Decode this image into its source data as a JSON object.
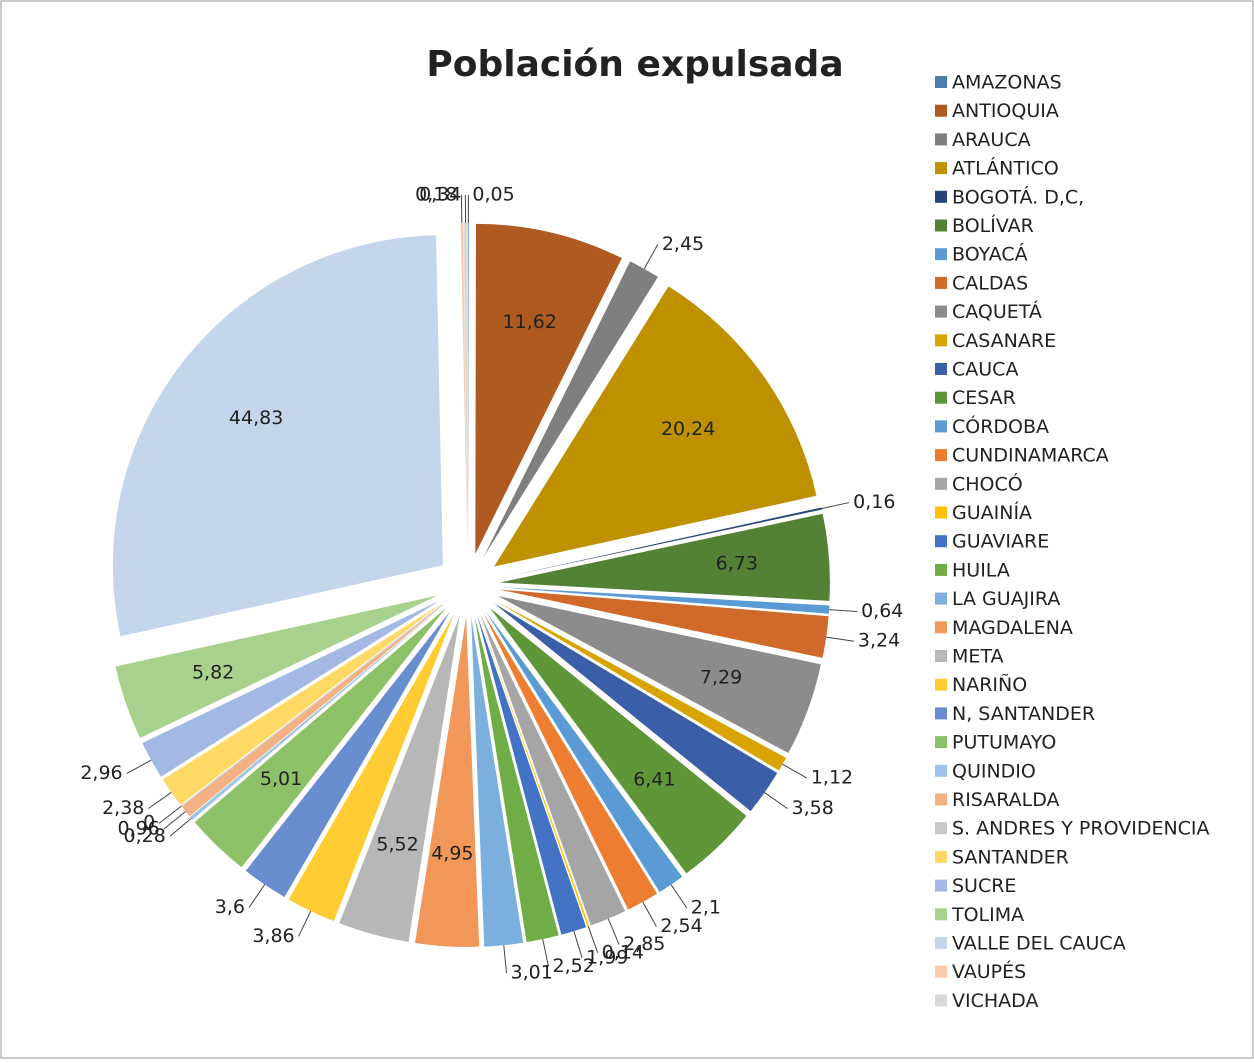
{
  "chart_data": {
    "type": "pie",
    "title": "Población expulsada",
    "categories": [
      "AMAZONAS",
      "ANTIOQUIA",
      "ARAUCA",
      "ATLÁNTICO",
      "BOGOTÁ. D,C,",
      "BOLÍVAR",
      "BOYACÁ",
      "CALDAS",
      "CAQUETÁ",
      "CASANARE",
      "CAUCA",
      "CESAR",
      "CÓRDOBA",
      "CUNDINAMARCA",
      "CHOCÓ",
      "GUAINÍA",
      "GUAVIARE",
      "HUILA",
      "LA GUAJIRA",
      "MAGDALENA",
      "META",
      "NARIÑO",
      "N, SANTANDER",
      "PUTUMAYO",
      "QUINDIO",
      "RISARALDA",
      "S. ANDRES Y PROVIDENCIA",
      "SANTANDER",
      "SUCRE",
      "TOLIMA",
      "VALLE DEL CAUCA",
      "VAUPÉS",
      "VICHADA"
    ],
    "values": [
      0.05,
      11.62,
      2.45,
      20.24,
      0.16,
      6.73,
      0.64,
      3.24,
      7.29,
      1.12,
      3.58,
      6.41,
      2.1,
      2.54,
      2.85,
      0.14,
      1.99,
      2.52,
      3.01,
      4.95,
      5.52,
      3.86,
      3.6,
      5.01,
      0.28,
      0.96,
      0,
      2.38,
      2.96,
      5.82,
      44.83,
      0.18,
      0.34
    ],
    "value_labels": [
      "0,05",
      "11,62",
      "2,45",
      "20,24",
      "0,16",
      "6,73",
      "0,64",
      "3,24",
      "7,29",
      "1,12",
      "3,58",
      "6,41",
      "2,1",
      "2,54",
      "2,85",
      "0,14",
      "1,99",
      "2,52",
      "3,01",
      "4,95",
      "5,52",
      "3,86",
      "3,6",
      "5,01",
      "0,28",
      "0,96",
      "0",
      "2,38",
      "2,96",
      "5,82",
      "44,83",
      "0,18",
      "0,34"
    ],
    "colors": [
      "#4a7eaf",
      "#ae5a21",
      "#7f7f7f",
      "#bf9000",
      "#264478",
      "#538135",
      "#5b9bd5",
      "#d0692a",
      "#8c8c8c",
      "#d9a400",
      "#3a5fa8",
      "#5e9638",
      "#5b9bd5",
      "#ed7d31",
      "#a5a5a5",
      "#ffc000",
      "#4472c4",
      "#70ad47",
      "#7cafdd",
      "#f1975a",
      "#b7b7b7",
      "#ffcd33",
      "#698ed0",
      "#8cc168",
      "#9dc3e6",
      "#f4b183",
      "#c9c9c9",
      "#ffd966",
      "#a4b8e4",
      "#a9d18e",
      "#c5d5ec",
      "#f8cbad",
      "#d9d9d9"
    ],
    "legend": "right"
  }
}
